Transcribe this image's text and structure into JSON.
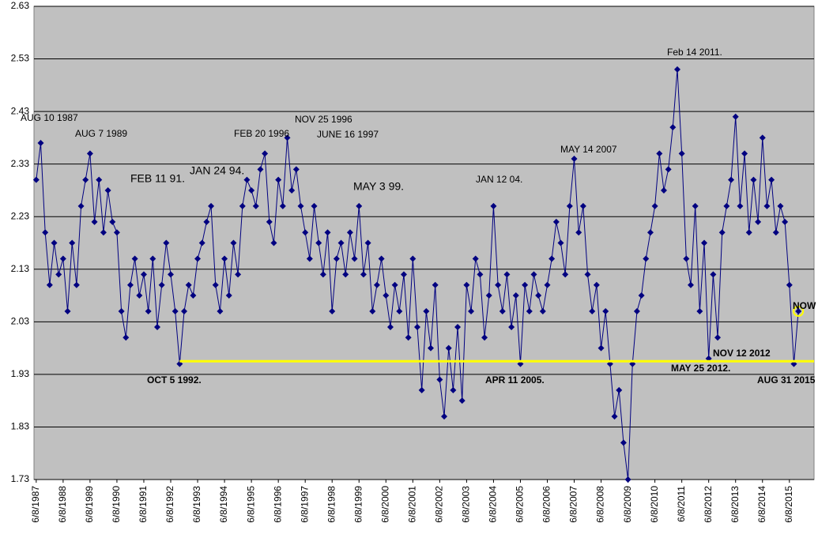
{
  "chart_data": {
    "type": "line",
    "ylim": [
      1.73,
      2.63
    ],
    "yticks": [
      1.73,
      1.83,
      1.93,
      2.03,
      2.13,
      2.23,
      2.33,
      2.43,
      2.53,
      2.63
    ],
    "grid": true,
    "background": "#c0c0c0",
    "categories": [
      "6/8/1987",
      null,
      null,
      null,
      null,
      null,
      "6/8/1988",
      null,
      null,
      null,
      null,
      null,
      "6/8/1989",
      null,
      null,
      null,
      null,
      null,
      "6/8/1990",
      null,
      null,
      null,
      null,
      null,
      "6/8/1991",
      null,
      null,
      null,
      null,
      null,
      "6/8/1992",
      null,
      null,
      null,
      null,
      null,
      "6/8/1993",
      null,
      null,
      null,
      null,
      null,
      "6/8/1994",
      null,
      null,
      null,
      null,
      null,
      "6/8/1995",
      null,
      null,
      null,
      null,
      null,
      "6/8/1996",
      null,
      null,
      null,
      null,
      null,
      "6/8/1997",
      null,
      null,
      null,
      null,
      null,
      "6/8/1998",
      null,
      null,
      null,
      null,
      null,
      "6/8/1999",
      null,
      null,
      null,
      null,
      null,
      "6/8/2000",
      null,
      null,
      null,
      null,
      null,
      "6/8/2001",
      null,
      null,
      null,
      null,
      null,
      "6/8/2002",
      null,
      null,
      null,
      null,
      null,
      "6/8/2003",
      null,
      null,
      null,
      null,
      null,
      "6/8/2004",
      null,
      null,
      null,
      null,
      null,
      "6/8/2005",
      null,
      null,
      null,
      null,
      null,
      "6/8/2006",
      null,
      null,
      null,
      null,
      null,
      "6/8/2007",
      null,
      null,
      null,
      null,
      null,
      "6/8/2008",
      null,
      null,
      null,
      null,
      null,
      "6/8/2009",
      null,
      null,
      null,
      null,
      null,
      "6/8/2010",
      null,
      null,
      null,
      null,
      null,
      "6/8/2011",
      null,
      null,
      null,
      null,
      null,
      "6/8/2012",
      null,
      null,
      null,
      null,
      null,
      "6/8/2013",
      null,
      null,
      null,
      null,
      null,
      "6/8/2014",
      null,
      null,
      null,
      null,
      null,
      "6/8/2015",
      null,
      null,
      null,
      null,
      null
    ],
    "series": [
      {
        "color": "#000080",
        "values": [
          2.3,
          2.37,
          2.2,
          2.1,
          2.18,
          2.12,
          2.15,
          2.05,
          2.18,
          2.1,
          2.25,
          2.3,
          2.35,
          2.22,
          2.3,
          2.2,
          2.28,
          2.22,
          2.2,
          2.05,
          2.0,
          2.1,
          2.15,
          2.08,
          2.12,
          2.05,
          2.15,
          2.02,
          2.1,
          2.18,
          2.12,
          2.05,
          1.95,
          2.05,
          2.1,
          2.08,
          2.15,
          2.18,
          2.22,
          2.25,
          2.1,
          2.05,
          2.15,
          2.08,
          2.18,
          2.12,
          2.25,
          2.3,
          2.28,
          2.25,
          2.32,
          2.35,
          2.22,
          2.18,
          2.3,
          2.25,
          2.38,
          2.28,
          2.32,
          2.25,
          2.2,
          2.15,
          2.25,
          2.18,
          2.12,
          2.2,
          2.05,
          2.15,
          2.18,
          2.12,
          2.2,
          2.15,
          2.25,
          2.12,
          2.18,
          2.05,
          2.1,
          2.15,
          2.08,
          2.02,
          2.1,
          2.05,
          2.12,
          2.0,
          2.15,
          2.02,
          1.9,
          2.05,
          1.98,
          2.1,
          1.92,
          1.85,
          1.98,
          1.9,
          2.02,
          1.88,
          2.1,
          2.05,
          2.15,
          2.12,
          2.0,
          2.08,
          2.25,
          2.1,
          2.05,
          2.12,
          2.02,
          2.08,
          1.95,
          2.1,
          2.05,
          2.12,
          2.08,
          2.05,
          2.1,
          2.15,
          2.22,
          2.18,
          2.12,
          2.25,
          2.34,
          2.2,
          2.25,
          2.12,
          2.05,
          2.1,
          1.98,
          2.05,
          1.95,
          1.85,
          1.9,
          1.8,
          1.73,
          1.95,
          2.05,
          2.08,
          2.15,
          2.2,
          2.25,
          2.35,
          2.28,
          2.32,
          2.4,
          2.51,
          2.35,
          2.15,
          2.1,
          2.25,
          2.05,
          2.18,
          1.96,
          2.12,
          2.0,
          2.2,
          2.25,
          2.3,
          2.42,
          2.25,
          2.35,
          2.2,
          2.3,
          2.22,
          2.38,
          2.25,
          2.3,
          2.2,
          2.25,
          2.22,
          2.1,
          1.95,
          2.05,
          null,
          null,
          null
        ]
      }
    ],
    "reference_line": {
      "value": 1.955,
      "color": "#ffff00"
    },
    "annotations": [
      "AUG 10 1987",
      "AUG 7 1989",
      "FEB 11 91.",
      "JAN 24 94.",
      "FEB 20 1996",
      "NOV 25 1996",
      "JUNE 16 1997",
      "MAY 3 99.",
      "JAN 12 04.",
      "MAY 14 2007",
      "Feb 14 2011.",
      "OCT 5 1992.",
      "APR 11 2005.",
      "NOV 12 2012",
      "MAY 25 2012.",
      "AUG 31 2015",
      "NOW"
    ]
  }
}
